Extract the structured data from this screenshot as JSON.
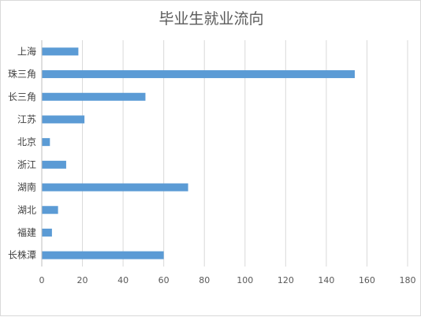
{
  "chart_data": {
    "type": "bar",
    "orientation": "horizontal",
    "title": "毕业生就业流向",
    "categories": [
      "上海",
      "珠三角",
      "长三角",
      "江苏",
      "北京",
      "浙江",
      "湖南",
      "湖北",
      "福建",
      "长株潭"
    ],
    "values": [
      18,
      154,
      51,
      21,
      4,
      12,
      72,
      8,
      5,
      60
    ],
    "xlim": [
      0,
      180
    ],
    "xticks": [
      0,
      20,
      40,
      60,
      80,
      100,
      120,
      140,
      160,
      180
    ],
    "grid": "vertical",
    "legend": "none",
    "bar_color": "#5b9bd5"
  }
}
